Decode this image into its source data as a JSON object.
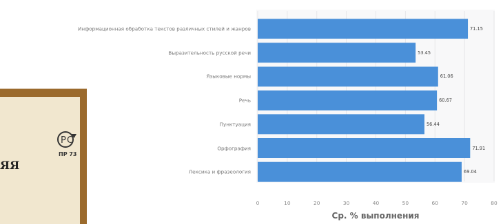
{
  "chart_data": {
    "type": "bar",
    "orientation": "horizontal",
    "categories": [
      "Информационная обработка текстов различных стилей и жанров",
      "Выразительность русской речи",
      "Языковые нормы",
      "Речь",
      "Пунктуация",
      "Орфография",
      "Лексика и фразеология"
    ],
    "values": [
      71.15,
      53.45,
      61.06,
      60.67,
      56.44,
      71.91,
      69.04
    ],
    "value_labels": [
      "71.15",
      "53.45",
      "61.06",
      "60.67",
      "56.44",
      "71.91",
      "69.04"
    ],
    "xlabel": "Ср. % выполнения",
    "xlim": [
      0,
      80
    ],
    "xticks": [
      "0",
      "10",
      "20",
      "30",
      "40",
      "50",
      "60",
      "70",
      "80"
    ],
    "bar_color": "#4a90d9",
    "grid": true
  },
  "document_fragment": {
    "code": "ПР 73",
    "heading": "ЯЯ"
  }
}
